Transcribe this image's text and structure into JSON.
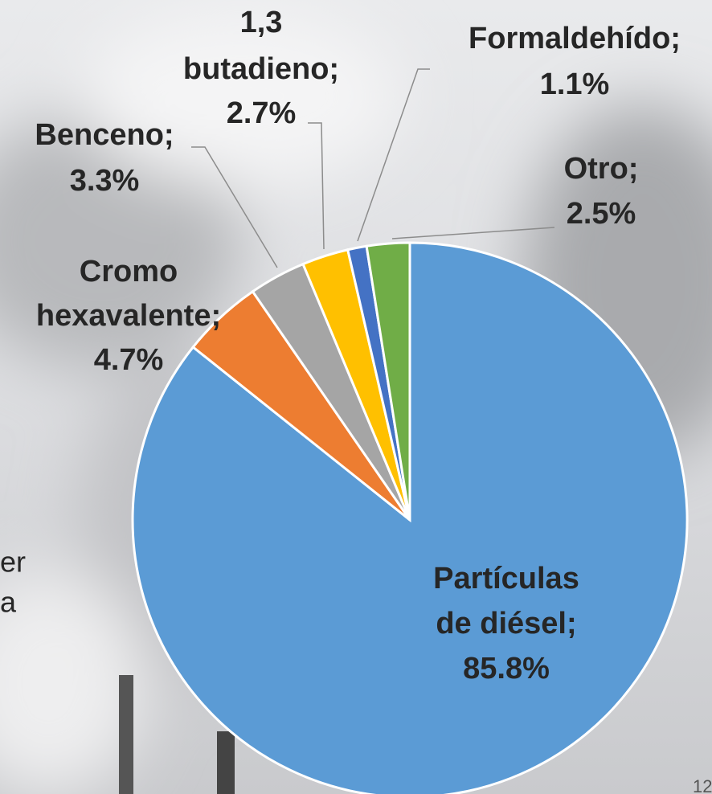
{
  "chart_data": {
    "type": "pie",
    "categories": [
      "Partículas de diésel;",
      "Cromo hexavalente;",
      "Benceno;",
      "1,3 butadieno;",
      "Formaldehído;",
      "Otro;"
    ],
    "values": [
      85.8,
      4.7,
      3.3,
      2.7,
      1.1,
      2.5
    ],
    "value_labels": [
      "85.8%",
      "4.7%",
      "3.3%",
      "2.7%",
      "1.1%",
      "2.5%"
    ],
    "colors": [
      "#5b9bd5",
      "#ed7d31",
      "#a5a5a5",
      "#ffc000",
      "#4472c4",
      "#70ad47"
    ]
  },
  "fragments": [
    "er",
    "a",
    "12"
  ]
}
